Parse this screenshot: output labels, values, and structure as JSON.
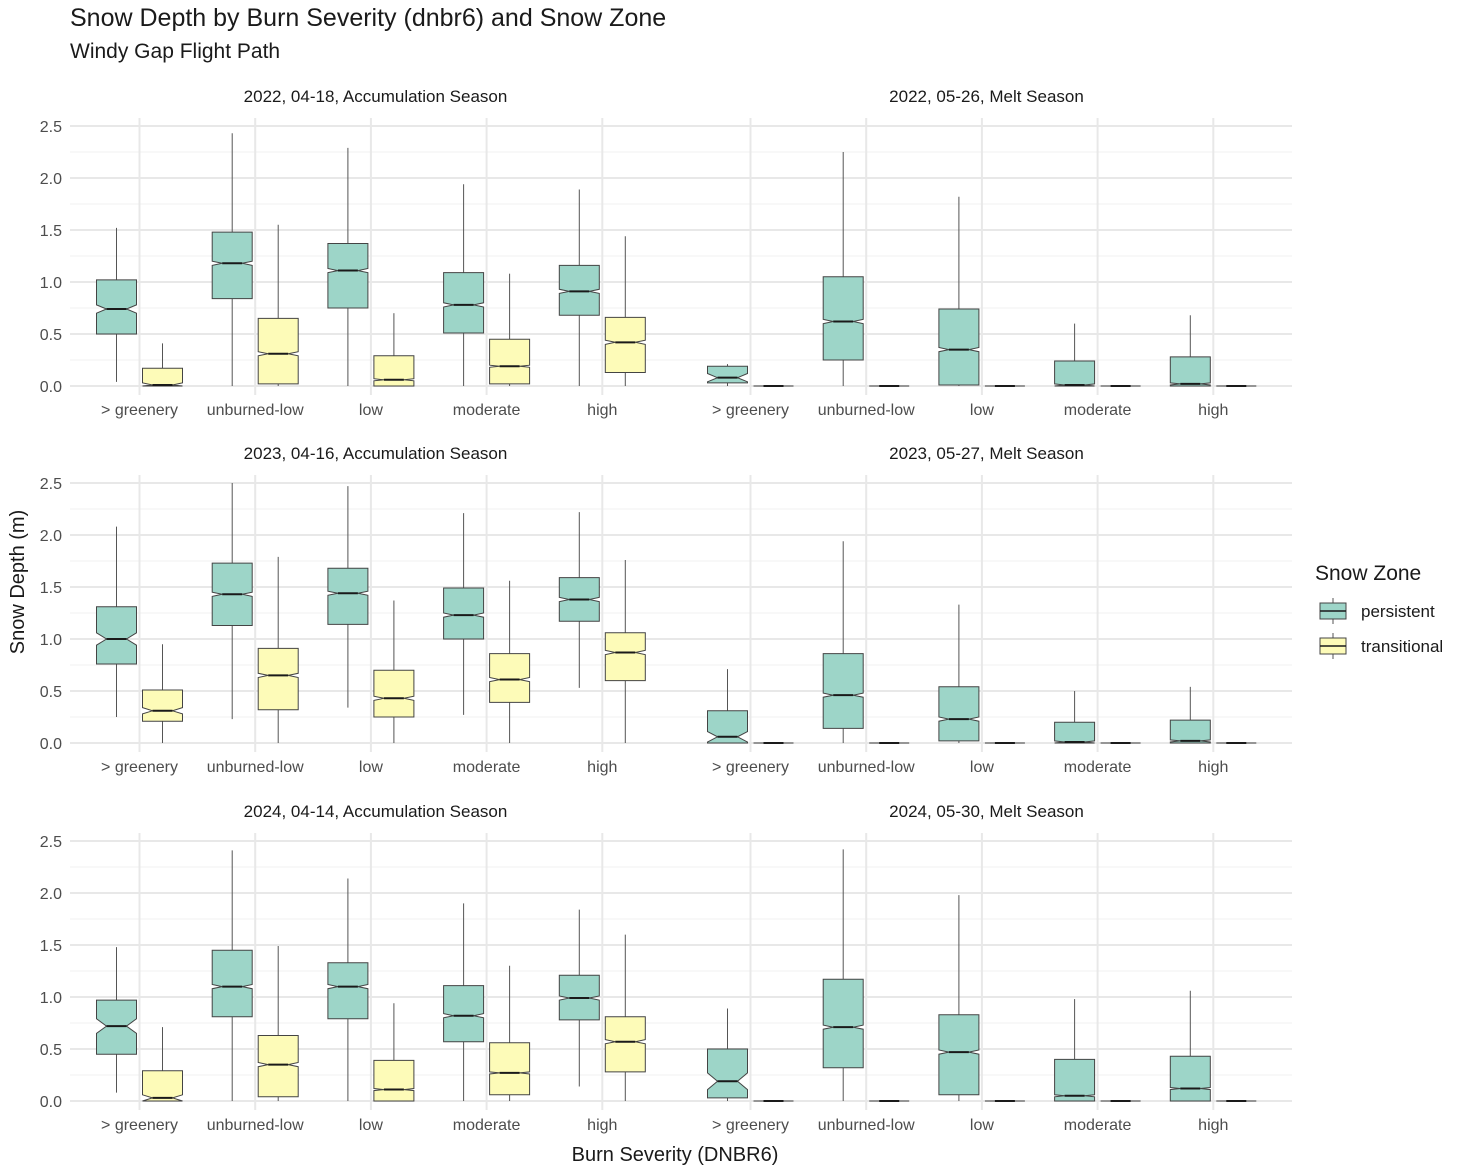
{
  "title": "Snow Depth by Burn Severity (dnbr6) and Snow Zone",
  "subtitle": "Windy Gap Flight Path",
  "chart_data": {
    "type": "boxplot",
    "notched": true,
    "xlabel": "Burn Severity (DNBR6)",
    "ylabel": "Snow Depth (m)",
    "ylim": [
      0,
      2.5
    ],
    "yticks": [
      0.0,
      0.5,
      1.0,
      1.5,
      2.0,
      2.5
    ],
    "ytick_labels": [
      "0.0",
      "0.5",
      "1.0",
      "1.5",
      "2.0",
      "2.5"
    ],
    "grid": true,
    "categories": [
      "> greenery",
      "unburned-low",
      "low",
      "moderate",
      "high"
    ],
    "legend": {
      "title": "Snow Zone",
      "position": "right",
      "entries": [
        {
          "name": "persistent",
          "color": "#9dd5c8"
        },
        {
          "name": "transitional",
          "color": "#fdfbb8"
        }
      ]
    },
    "facets": [
      {
        "label": "2022, 04-18, Accumulation Season",
        "persistent": [
          {
            "min": 0.04,
            "q1": 0.5,
            "median": 0.74,
            "q3": 1.02,
            "max": 1.52,
            "notch": [
              0.7,
              0.78
            ]
          },
          {
            "min": 0.0,
            "q1": 0.84,
            "median": 1.18,
            "q3": 1.48,
            "max": 2.43,
            "notch": [
              1.16,
              1.2
            ]
          },
          {
            "min": 0.0,
            "q1": 0.75,
            "median": 1.11,
            "q3": 1.37,
            "max": 2.29,
            "notch": [
              1.09,
              1.13
            ]
          },
          {
            "min": 0.0,
            "q1": 0.51,
            "median": 0.78,
            "q3": 1.09,
            "max": 1.94,
            "notch": [
              0.76,
              0.8
            ]
          },
          {
            "min": 0.0,
            "q1": 0.68,
            "median": 0.91,
            "q3": 1.16,
            "max": 1.89,
            "notch": [
              0.89,
              0.93
            ]
          }
        ],
        "transitional": [
          {
            "min": 0.0,
            "q1": 0.0,
            "median": 0.01,
            "q3": 0.17,
            "max": 0.41,
            "notch": [
              0.0,
              0.03
            ]
          },
          {
            "min": 0.0,
            "q1": 0.02,
            "median": 0.31,
            "q3": 0.65,
            "max": 1.55,
            "notch": [
              0.29,
              0.33
            ]
          },
          {
            "min": 0.0,
            "q1": 0.0,
            "median": 0.06,
            "q3": 0.29,
            "max": 0.7,
            "notch": [
              0.05,
              0.07
            ]
          },
          {
            "min": 0.0,
            "q1": 0.02,
            "median": 0.19,
            "q3": 0.45,
            "max": 1.08,
            "notch": [
              0.18,
              0.2
            ]
          },
          {
            "min": 0.0,
            "q1": 0.13,
            "median": 0.42,
            "q3": 0.66,
            "max": 1.44,
            "notch": [
              0.4,
              0.44
            ]
          }
        ]
      },
      {
        "label": "2022, 05-26, Melt Season",
        "persistent": [
          {
            "min": 0.0,
            "q1": 0.03,
            "median": 0.08,
            "q3": 0.19,
            "max": 0.21,
            "notch": [
              0.04,
              0.12
            ]
          },
          {
            "min": 0.0,
            "q1": 0.25,
            "median": 0.62,
            "q3": 1.05,
            "max": 2.25,
            "notch": [
              0.6,
              0.64
            ]
          },
          {
            "min": 0.0,
            "q1": 0.01,
            "median": 0.35,
            "q3": 0.74,
            "max": 1.82,
            "notch": [
              0.33,
              0.37
            ]
          },
          {
            "min": 0.0,
            "q1": 0.0,
            "median": 0.01,
            "q3": 0.24,
            "max": 0.6,
            "notch": [
              0.0,
              0.02
            ]
          },
          {
            "min": 0.0,
            "q1": 0.0,
            "median": 0.02,
            "q3": 0.28,
            "max": 0.68,
            "notch": [
              0.01,
              0.03
            ]
          }
        ],
        "transitional": [
          {
            "min": 0.0,
            "q1": 0.0,
            "median": 0.0,
            "q3": 0.0,
            "max": 0.0,
            "notch": [
              0.0,
              0.0
            ]
          },
          {
            "min": 0.0,
            "q1": 0.0,
            "median": 0.0,
            "q3": 0.0,
            "max": 0.0,
            "notch": [
              0.0,
              0.0
            ]
          },
          {
            "min": 0.0,
            "q1": 0.0,
            "median": 0.0,
            "q3": 0.0,
            "max": 0.0,
            "notch": [
              0.0,
              0.0
            ]
          },
          {
            "min": 0.0,
            "q1": 0.0,
            "median": 0.0,
            "q3": 0.0,
            "max": 0.0,
            "notch": [
              0.0,
              0.0
            ]
          },
          {
            "min": 0.0,
            "q1": 0.0,
            "median": 0.0,
            "q3": 0.0,
            "max": 0.0,
            "notch": [
              0.0,
              0.0
            ]
          }
        ]
      },
      {
        "label": "2023, 04-16, Accumulation Season",
        "persistent": [
          {
            "min": 0.25,
            "q1": 0.76,
            "median": 1.0,
            "q3": 1.31,
            "max": 2.08,
            "notch": [
              0.94,
              1.06
            ]
          },
          {
            "min": 0.23,
            "q1": 1.13,
            "median": 1.43,
            "q3": 1.73,
            "max": 2.5,
            "notch": [
              1.41,
              1.45
            ]
          },
          {
            "min": 0.34,
            "q1": 1.14,
            "median": 1.44,
            "q3": 1.68,
            "max": 2.47,
            "notch": [
              1.42,
              1.46
            ]
          },
          {
            "min": 0.27,
            "q1": 1.0,
            "median": 1.23,
            "q3": 1.49,
            "max": 2.21,
            "notch": [
              1.21,
              1.25
            ]
          },
          {
            "min": 0.53,
            "q1": 1.17,
            "median": 1.38,
            "q3": 1.59,
            "max": 2.22,
            "notch": [
              1.36,
              1.4
            ]
          }
        ],
        "transitional": [
          {
            "min": 0.0,
            "q1": 0.21,
            "median": 0.31,
            "q3": 0.51,
            "max": 0.95,
            "notch": [
              0.28,
              0.34
            ]
          },
          {
            "min": 0.0,
            "q1": 0.32,
            "median": 0.65,
            "q3": 0.91,
            "max": 1.79,
            "notch": [
              0.63,
              0.67
            ]
          },
          {
            "min": 0.0,
            "q1": 0.25,
            "median": 0.43,
            "q3": 0.7,
            "max": 1.37,
            "notch": [
              0.41,
              0.45
            ]
          },
          {
            "min": 0.0,
            "q1": 0.39,
            "median": 0.61,
            "q3": 0.86,
            "max": 1.56,
            "notch": [
              0.59,
              0.63
            ]
          },
          {
            "min": 0.0,
            "q1": 0.6,
            "median": 0.87,
            "q3": 1.06,
            "max": 1.76,
            "notch": [
              0.85,
              0.89
            ]
          }
        ]
      },
      {
        "label": "2023, 05-27, Melt Season",
        "persistent": [
          {
            "min": 0.0,
            "q1": 0.0,
            "median": 0.06,
            "q3": 0.31,
            "max": 0.71,
            "notch": [
              0.01,
              0.11
            ]
          },
          {
            "min": 0.0,
            "q1": 0.14,
            "median": 0.46,
            "q3": 0.86,
            "max": 1.94,
            "notch": [
              0.44,
              0.48
            ]
          },
          {
            "min": 0.0,
            "q1": 0.02,
            "median": 0.23,
            "q3": 0.54,
            "max": 1.33,
            "notch": [
              0.21,
              0.25
            ]
          },
          {
            "min": 0.0,
            "q1": 0.0,
            "median": 0.01,
            "q3": 0.2,
            "max": 0.5,
            "notch": [
              0.0,
              0.02
            ]
          },
          {
            "min": 0.0,
            "q1": 0.0,
            "median": 0.02,
            "q3": 0.22,
            "max": 0.54,
            "notch": [
              0.01,
              0.03
            ]
          }
        ],
        "transitional": [
          {
            "min": 0.0,
            "q1": 0.0,
            "median": 0.0,
            "q3": 0.0,
            "max": 0.0,
            "notch": [
              0.0,
              0.0
            ]
          },
          {
            "min": 0.0,
            "q1": 0.0,
            "median": 0.0,
            "q3": 0.0,
            "max": 0.0,
            "notch": [
              0.0,
              0.0
            ]
          },
          {
            "min": 0.0,
            "q1": 0.0,
            "median": 0.0,
            "q3": 0.0,
            "max": 0.0,
            "notch": [
              0.0,
              0.0
            ]
          },
          {
            "min": 0.0,
            "q1": 0.0,
            "median": 0.0,
            "q3": 0.0,
            "max": 0.0,
            "notch": [
              0.0,
              0.0
            ]
          },
          {
            "min": 0.0,
            "q1": 0.0,
            "median": 0.0,
            "q3": 0.0,
            "max": 0.0,
            "notch": [
              0.0,
              0.0
            ]
          }
        ]
      },
      {
        "label": "2024, 04-14, Accumulation Season",
        "persistent": [
          {
            "min": 0.08,
            "q1": 0.45,
            "median": 0.72,
            "q3": 0.97,
            "max": 1.48,
            "notch": [
              0.65,
              0.79
            ]
          },
          {
            "min": 0.0,
            "q1": 0.81,
            "median": 1.1,
            "q3": 1.45,
            "max": 2.41,
            "notch": [
              1.08,
              1.12
            ]
          },
          {
            "min": 0.0,
            "q1": 0.79,
            "median": 1.1,
            "q3": 1.33,
            "max": 2.14,
            "notch": [
              1.08,
              1.12
            ]
          },
          {
            "min": 0.0,
            "q1": 0.57,
            "median": 0.82,
            "q3": 1.11,
            "max": 1.9,
            "notch": [
              0.8,
              0.84
            ]
          },
          {
            "min": 0.14,
            "q1": 0.78,
            "median": 0.99,
            "q3": 1.21,
            "max": 1.84,
            "notch": [
              0.97,
              1.01
            ]
          }
        ],
        "transitional": [
          {
            "min": 0.0,
            "q1": 0.0,
            "median": 0.03,
            "q3": 0.29,
            "max": 0.71,
            "notch": [
              0.0,
              0.06
            ]
          },
          {
            "min": 0.0,
            "q1": 0.04,
            "median": 0.35,
            "q3": 0.63,
            "max": 1.49,
            "notch": [
              0.33,
              0.37
            ]
          },
          {
            "min": 0.0,
            "q1": 0.0,
            "median": 0.11,
            "q3": 0.39,
            "max": 0.94,
            "notch": [
              0.1,
              0.12
            ]
          },
          {
            "min": 0.0,
            "q1": 0.06,
            "median": 0.27,
            "q3": 0.56,
            "max": 1.3,
            "notch": [
              0.26,
              0.28
            ]
          },
          {
            "min": 0.0,
            "q1": 0.28,
            "median": 0.57,
            "q3": 0.81,
            "max": 1.6,
            "notch": [
              0.55,
              0.59
            ]
          }
        ]
      },
      {
        "label": "2024, 05-30, Melt Season",
        "persistent": [
          {
            "min": 0.0,
            "q1": 0.03,
            "median": 0.19,
            "q3": 0.5,
            "max": 0.89,
            "notch": [
              0.11,
              0.27
            ]
          },
          {
            "min": 0.0,
            "q1": 0.32,
            "median": 0.71,
            "q3": 1.17,
            "max": 2.42,
            "notch": [
              0.69,
              0.73
            ]
          },
          {
            "min": 0.0,
            "q1": 0.06,
            "median": 0.47,
            "q3": 0.83,
            "max": 1.98,
            "notch": [
              0.45,
              0.49
            ]
          },
          {
            "min": 0.0,
            "q1": 0.0,
            "median": 0.05,
            "q3": 0.4,
            "max": 0.98,
            "notch": [
              0.04,
              0.06
            ]
          },
          {
            "min": 0.0,
            "q1": 0.0,
            "median": 0.12,
            "q3": 0.43,
            "max": 1.06,
            "notch": [
              0.11,
              0.13
            ]
          }
        ],
        "transitional": [
          {
            "min": 0.0,
            "q1": 0.0,
            "median": 0.0,
            "q3": 0.0,
            "max": 0.0,
            "notch": [
              0.0,
              0.0
            ]
          },
          {
            "min": 0.0,
            "q1": 0.0,
            "median": 0.0,
            "q3": 0.0,
            "max": 0.0,
            "notch": [
              0.0,
              0.0
            ]
          },
          {
            "min": 0.0,
            "q1": 0.0,
            "median": 0.0,
            "q3": 0.0,
            "max": 0.0,
            "notch": [
              0.0,
              0.0
            ]
          },
          {
            "min": 0.0,
            "q1": 0.0,
            "median": 0.0,
            "q3": 0.0,
            "max": 0.0,
            "notch": [
              0.0,
              0.0
            ]
          },
          {
            "min": 0.0,
            "q1": 0.0,
            "median": 0.0,
            "q3": 0.0,
            "max": 0.0,
            "notch": [
              0.0,
              0.0
            ]
          }
        ]
      }
    ]
  }
}
